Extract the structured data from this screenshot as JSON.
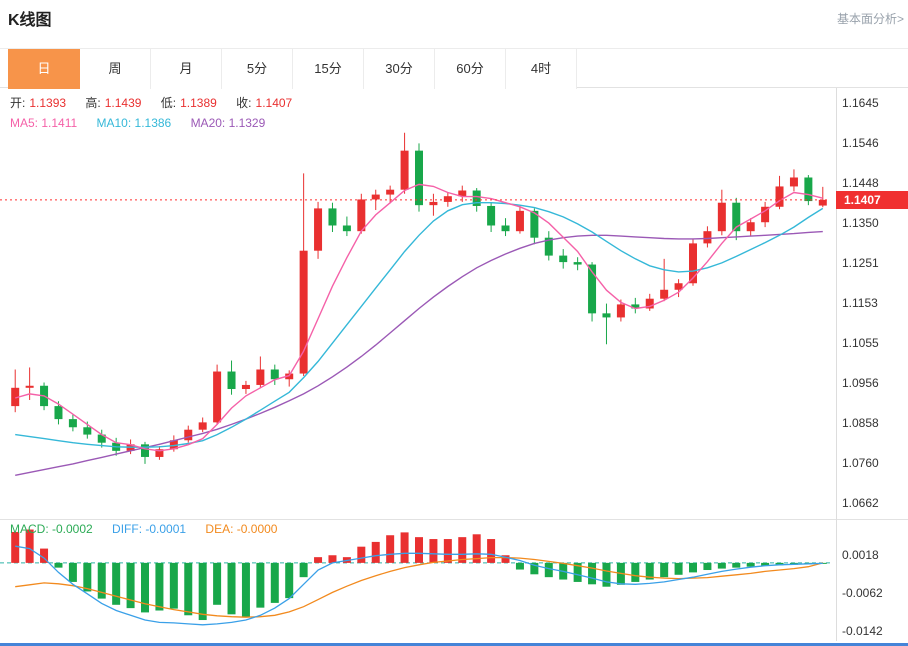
{
  "header": {
    "title": "K线图",
    "link_label": "基本面分析>"
  },
  "tabs": [
    {
      "label": "日",
      "active": true
    },
    {
      "label": "周",
      "active": false
    },
    {
      "label": "月",
      "active": false
    },
    {
      "label": "5分",
      "active": false
    },
    {
      "label": "15分",
      "active": false
    },
    {
      "label": "30分",
      "active": false
    },
    {
      "label": "60分",
      "active": false
    },
    {
      "label": "4时",
      "active": false
    }
  ],
  "ohlc_legend": {
    "open_label": "开:",
    "open_value": "1.1393",
    "high_label": "高:",
    "high_value": "1.1439",
    "low_label": "低:",
    "low_value": "1.1389",
    "close_label": "收:",
    "close_value": "1.1407"
  },
  "ma_legend": {
    "ma5": "MA5: 1.1411",
    "ma10": "MA10: 1.1386",
    "ma20": "MA20: 1.1329"
  },
  "macd_legend": {
    "macd": "MACD: -0.0002",
    "diff": "DIFF: -0.0001",
    "dea": "DEA: -0.0000"
  },
  "price_tag": "1.1407",
  "main_axis_labels": [
    "1.1645",
    "1.1546",
    "1.1448",
    "1.1350",
    "1.1251",
    "1.1153",
    "1.1055",
    "1.0956",
    "1.0858",
    "1.0760",
    "1.0662"
  ],
  "macd_axis_labels": [
    "0.0018",
    "-0.0062",
    "-0.0142"
  ],
  "colors": {
    "up": "#e93030",
    "down": "#18a74a",
    "ma5": "#f561a8",
    "ma10": "#35b8d8",
    "ma20": "#9b59b6",
    "diff": "#3aa0e8",
    "dea": "#f28a1e",
    "zero_line": "#2db3a6",
    "price_line": "#ff2d2d",
    "tag_bg": "#f03030",
    "accent": "#f7944a"
  },
  "chart_data": {
    "type": "candlestick",
    "title": "K线图 (daily candlestick with MA5/MA10/MA20 and MACD)",
    "current_price": 1.1407,
    "main_ylim": [
      1.062,
      1.1682
    ],
    "macd_ylim": [
      -0.0164,
      0.009
    ],
    "candles": [
      [
        1.09,
        1.099,
        1.0885,
        1.0945
      ],
      [
        1.0945,
        1.0995,
        1.0915,
        1.095
      ],
      [
        1.095,
        1.0958,
        1.089,
        1.09
      ],
      [
        1.09,
        1.0912,
        1.0855,
        1.0868
      ],
      [
        1.0868,
        1.088,
        1.0838,
        1.0848
      ],
      [
        1.0848,
        1.0862,
        1.082,
        1.083
      ],
      [
        1.083,
        1.0842,
        1.0798,
        1.081
      ],
      [
        1.081,
        1.0822,
        1.0778,
        1.079
      ],
      [
        1.079,
        1.0818,
        1.0782,
        1.0806
      ],
      [
        1.0806,
        1.0812,
        1.0758,
        1.0775
      ],
      [
        1.0775,
        1.0802,
        1.0768,
        1.0794
      ],
      [
        1.0794,
        1.0828,
        1.0788,
        1.0816
      ],
      [
        1.0816,
        1.0852,
        1.081,
        1.0842
      ],
      [
        1.0842,
        1.0872,
        1.0836,
        1.086
      ],
      [
        1.086,
        1.1002,
        1.0854,
        1.0985
      ],
      [
        1.0985,
        1.1012,
        1.0928,
        1.0942
      ],
      [
        1.0942,
        1.0962,
        1.093,
        1.0952
      ],
      [
        1.0952,
        1.1022,
        1.0944,
        1.099
      ],
      [
        1.099,
        1.1002,
        1.0952,
        1.0966
      ],
      [
        1.0966,
        1.0988,
        1.0948,
        1.098
      ],
      [
        1.098,
        1.1472,
        1.0974,
        1.1282
      ],
      [
        1.1282,
        1.1402,
        1.1262,
        1.1386
      ],
      [
        1.1386,
        1.14,
        1.1328,
        1.1344
      ],
      [
        1.1344,
        1.1366,
        1.1318,
        1.133
      ],
      [
        1.133,
        1.1422,
        1.1324,
        1.1408
      ],
      [
        1.1408,
        1.1432,
        1.1382,
        1.142
      ],
      [
        1.142,
        1.1442,
        1.1398,
        1.1432
      ],
      [
        1.1432,
        1.1572,
        1.1422,
        1.1528
      ],
      [
        1.1528,
        1.1546,
        1.1378,
        1.1394
      ],
      [
        1.1394,
        1.1422,
        1.1368,
        1.1402
      ],
      [
        1.1402,
        1.1426,
        1.139,
        1.1416
      ],
      [
        1.1416,
        1.1442,
        1.1402,
        1.143
      ],
      [
        1.143,
        1.1436,
        1.1378,
        1.1392
      ],
      [
        1.1392,
        1.14,
        1.1328,
        1.1344
      ],
      [
        1.1344,
        1.1362,
        1.1318,
        1.133
      ],
      [
        1.133,
        1.1392,
        1.1324,
        1.138
      ],
      [
        1.138,
        1.1386,
        1.1298,
        1.1314
      ],
      [
        1.1314,
        1.133,
        1.1258,
        1.127
      ],
      [
        1.127,
        1.1286,
        1.1238,
        1.1254
      ],
      [
        1.1254,
        1.1266,
        1.1234,
        1.1248
      ],
      [
        1.1248,
        1.1254,
        1.1108,
        1.1128
      ],
      [
        1.1128,
        1.1152,
        1.1052,
        1.1118
      ],
      [
        1.1118,
        1.1162,
        1.1108,
        1.115
      ],
      [
        1.115,
        1.1166,
        1.1128,
        1.114
      ],
      [
        1.114,
        1.1176,
        1.1134,
        1.1164
      ],
      [
        1.1164,
        1.1262,
        1.1158,
        1.1186
      ],
      [
        1.1186,
        1.1212,
        1.1168,
        1.1202
      ],
      [
        1.1202,
        1.1312,
        1.1196,
        1.13
      ],
      [
        1.13,
        1.1342,
        1.129,
        1.133
      ],
      [
        1.133,
        1.1432,
        1.132,
        1.14
      ],
      [
        1.14,
        1.1412,
        1.1308,
        1.133
      ],
      [
        1.133,
        1.1362,
        1.1318,
        1.1352
      ],
      [
        1.1352,
        1.1402,
        1.134,
        1.139
      ],
      [
        1.139,
        1.1466,
        1.1384,
        1.144
      ],
      [
        1.144,
        1.1482,
        1.1428,
        1.1462
      ],
      [
        1.1462,
        1.1468,
        1.1394,
        1.1404
      ],
      [
        1.1393,
        1.1439,
        1.1389,
        1.1407
      ]
    ],
    "ma5": [
      1.092,
      1.093,
      1.0925,
      1.0905,
      1.088,
      1.0855,
      1.083,
      1.081,
      1.0805,
      1.0795,
      1.079,
      1.0795,
      1.0805,
      1.082,
      1.0855,
      1.0895,
      1.0925,
      1.0945,
      1.0965,
      1.0975,
      1.1035,
      1.1115,
      1.1195,
      1.1265,
      1.133,
      1.137,
      1.14,
      1.143,
      1.1445,
      1.144,
      1.1425,
      1.1415,
      1.1415,
      1.141,
      1.14,
      1.139,
      1.1375,
      1.135,
      1.1315,
      1.128,
      1.123,
      1.1185,
      1.1155,
      1.114,
      1.1145,
      1.116,
      1.118,
      1.1215,
      1.1255,
      1.13,
      1.134,
      1.136,
      1.138,
      1.1405,
      1.1425,
      1.142,
      1.1411
    ],
    "ma10": [
      1.083,
      1.0825,
      1.082,
      1.0815,
      1.081,
      1.0806,
      1.0803,
      1.08,
      1.0799,
      1.0799,
      1.08,
      1.0803,
      1.0808,
      1.0815,
      1.083,
      1.0848,
      1.0868,
      1.089,
      1.0912,
      1.0934,
      1.097,
      1.101,
      1.1055,
      1.11,
      1.1145,
      1.119,
      1.1235,
      1.128,
      1.132,
      1.1355,
      1.138,
      1.1395,
      1.14,
      1.14,
      1.1398,
      1.1394,
      1.1388,
      1.1378,
      1.1365,
      1.1348,
      1.1328,
      1.1305,
      1.1282,
      1.1262,
      1.1245,
      1.1235,
      1.123,
      1.1232,
      1.124,
      1.1252,
      1.1268,
      1.1285,
      1.1302,
      1.132,
      1.134,
      1.1364,
      1.1386
    ],
    "ma20": [
      1.073,
      1.0737,
      1.0744,
      1.0751,
      1.0758,
      1.0766,
      1.0774,
      1.0782,
      1.079,
      1.0798,
      1.0806,
      1.0815,
      1.0824,
      1.0833,
      1.0843,
      1.0855,
      1.0868,
      1.0882,
      1.0897,
      1.0913,
      1.093,
      1.095,
      1.0972,
      1.0996,
      1.1022,
      1.105,
      1.108,
      1.111,
      1.114,
      1.1168,
      1.1194,
      1.1218,
      1.124,
      1.1258,
      1.1274,
      1.1288,
      1.13,
      1.1308,
      1.1314,
      1.1318,
      1.132,
      1.132,
      1.1318,
      1.1316,
      1.1314,
      1.1312,
      1.1311,
      1.1311,
      1.1312,
      1.1314,
      1.1316,
      1.1318,
      1.132,
      1.1322,
      1.1324,
      1.1327,
      1.1329
    ],
    "macd_hist": [
      0.0065,
      0.007,
      0.003,
      -0.001,
      -0.004,
      -0.006,
      -0.0075,
      -0.0088,
      -0.0095,
      -0.0104,
      -0.01,
      -0.0096,
      -0.011,
      -0.012,
      -0.0088,
      -0.0108,
      -0.0114,
      -0.0094,
      -0.0084,
      -0.0074,
      -0.003,
      0.0012,
      0.0016,
      0.0012,
      0.0034,
      0.0044,
      0.0058,
      0.0064,
      0.0054,
      0.005,
      0.005,
      0.0054,
      0.006,
      0.005,
      0.0016,
      -0.0014,
      -0.0024,
      -0.003,
      -0.0035,
      -0.004,
      -0.0045,
      -0.005,
      -0.0046,
      -0.004,
      -0.0035,
      -0.003,
      -0.0025,
      -0.002,
      -0.0015,
      -0.0012,
      -0.001,
      -0.0008,
      -0.0006,
      -0.0005,
      -0.0004,
      -0.0003,
      -0.0002
    ],
    "diff": [
      0.0035,
      0.003,
      0.001,
      -0.002,
      -0.0045,
      -0.0065,
      -0.0085,
      -0.01,
      -0.011,
      -0.012,
      -0.0125,
      -0.0126,
      -0.0128,
      -0.013,
      -0.0128,
      -0.0125,
      -0.012,
      -0.011,
      -0.0095,
      -0.0075,
      -0.0045,
      -0.0015,
      0.0,
      0.0005,
      0.001,
      0.0015,
      0.0018,
      0.002,
      0.002,
      0.0019,
      0.0018,
      0.0018,
      0.0019,
      0.0018,
      0.0012,
      0.0005,
      -0.0005,
      -0.0012,
      -0.0018,
      -0.0025,
      -0.0032,
      -0.004,
      -0.0044,
      -0.0045,
      -0.0043,
      -0.004,
      -0.0035,
      -0.003,
      -0.0024,
      -0.0018,
      -0.0013,
      -0.0009,
      -0.0006,
      -0.0004,
      -0.0003,
      -0.0002,
      -0.0001
    ],
    "dea": [
      -0.005,
      -0.0046,
      -0.0042,
      -0.0044,
      -0.0048,
      -0.0054,
      -0.0062,
      -0.007,
      -0.0078,
      -0.0086,
      -0.0092,
      -0.0098,
      -0.0103,
      -0.0108,
      -0.0111,
      -0.0113,
      -0.0114,
      -0.0113,
      -0.011,
      -0.0103,
      -0.0092,
      -0.0077,
      -0.0062,
      -0.0049,
      -0.0037,
      -0.0027,
      -0.0018,
      -0.001,
      -0.0004,
      0.0001,
      0.0004,
      0.0007,
      0.0009,
      0.0011,
      0.0011,
      0.001,
      0.0007,
      0.0003,
      -0.0001,
      -0.0006,
      -0.0011,
      -0.0017,
      -0.0022,
      -0.0027,
      -0.003,
      -0.0032,
      -0.0033,
      -0.0032,
      -0.0031,
      -0.0028,
      -0.0025,
      -0.0022,
      -0.0018,
      -0.0015,
      -0.0012,
      -0.0008,
      0.0
    ]
  }
}
